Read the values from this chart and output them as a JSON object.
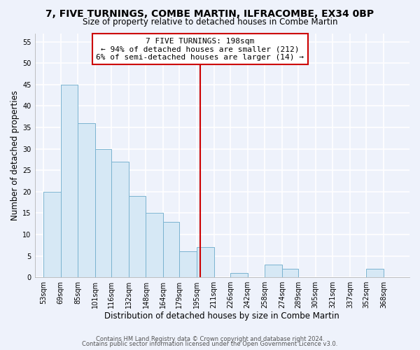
{
  "title": "7, FIVE TURNINGS, COMBE MARTIN, ILFRACOMBE, EX34 0BP",
  "subtitle": "Size of property relative to detached houses in Combe Martin",
  "xlabel": "Distribution of detached houses by size in Combe Martin",
  "ylabel": "Number of detached properties",
  "bin_labels": [
    "53sqm",
    "69sqm",
    "85sqm",
    "101sqm",
    "116sqm",
    "132sqm",
    "148sqm",
    "164sqm",
    "179sqm",
    "195sqm",
    "211sqm",
    "226sqm",
    "242sqm",
    "258sqm",
    "274sqm",
    "289sqm",
    "305sqm",
    "321sqm",
    "337sqm",
    "352sqm",
    "368sqm"
  ],
  "bin_edges": [
    53,
    69,
    85,
    101,
    116,
    132,
    148,
    164,
    179,
    195,
    211,
    226,
    242,
    258,
    274,
    289,
    305,
    321,
    337,
    352,
    368,
    384
  ],
  "counts": [
    20,
    45,
    36,
    30,
    27,
    19,
    15,
    13,
    6,
    7,
    0,
    1,
    0,
    3,
    2,
    0,
    0,
    0,
    0,
    2,
    0
  ],
  "bar_color": "#d6e8f5",
  "bar_edgecolor": "#7ab3d0",
  "property_line_x": 198,
  "property_line_color": "#cc0000",
  "annotation_title": "7 FIVE TURNINGS: 198sqm",
  "annotation_line1": "← 94% of detached houses are smaller (212)",
  "annotation_line2": "6% of semi-detached houses are larger (14) →",
  "annotation_box_color": "#ffffff",
  "annotation_box_edgecolor": "#cc0000",
  "ylim": [
    0,
    57
  ],
  "yticks": [
    0,
    5,
    10,
    15,
    20,
    25,
    30,
    35,
    40,
    45,
    50,
    55
  ],
  "footer1": "Contains HM Land Registry data © Crown copyright and database right 2024.",
  "footer2": "Contains public sector information licensed under the Open Government Licence v3.0.",
  "background_color": "#eef2fb",
  "grid_color": "#ffffff",
  "title_fontsize": 10,
  "subtitle_fontsize": 8.5,
  "axis_label_fontsize": 8.5,
  "tick_fontsize": 7,
  "footer_fontsize": 6,
  "annotation_fontsize": 8
}
